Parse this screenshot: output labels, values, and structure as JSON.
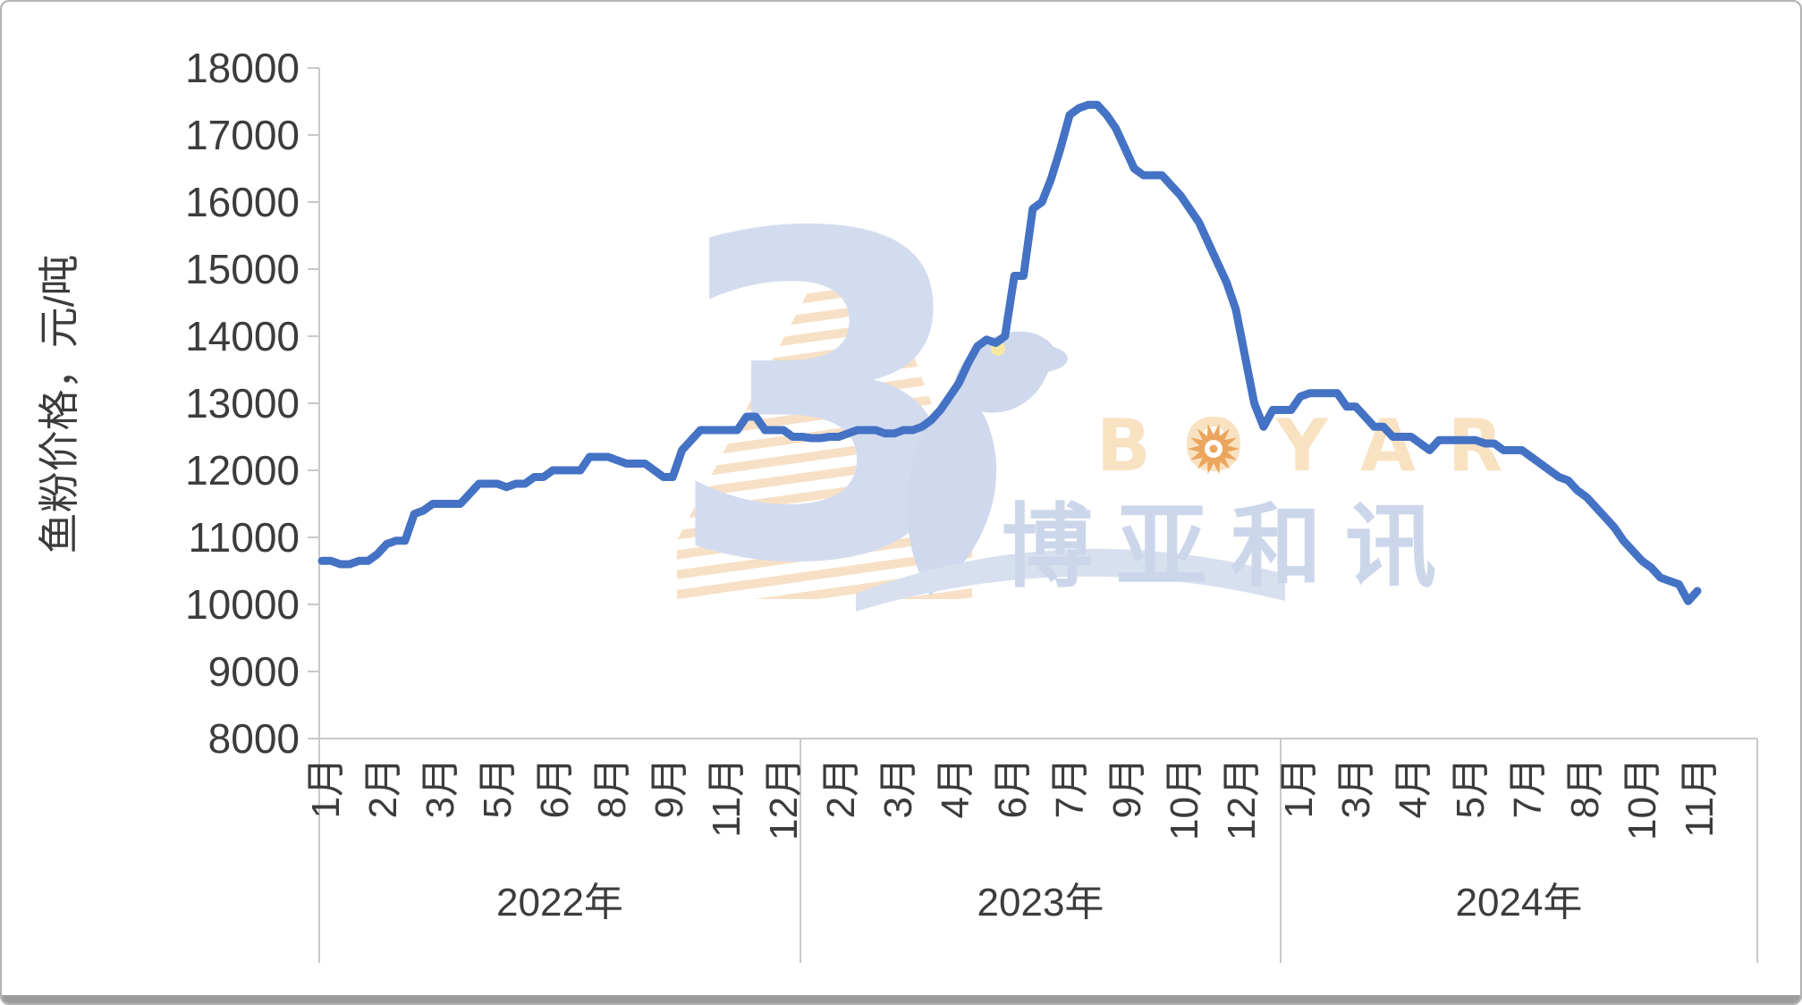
{
  "y_axis": {
    "title": "鱼粉价格，元/吨",
    "ticks": [
      18000,
      17000,
      16000,
      15000,
      14000,
      13000,
      12000,
      11000,
      10000,
      9000,
      8000
    ]
  },
  "x_axis": {
    "month_labels": [
      "1月",
      "2月",
      "3月",
      "5月",
      "6月",
      "8月",
      "9月",
      "11月",
      "12月",
      "2月",
      "3月",
      "4月",
      "6月",
      "7月",
      "9月",
      "10月",
      "12月",
      "1月",
      "3月",
      "4月",
      "5月",
      "7月",
      "8月",
      "10月",
      "11月"
    ],
    "year_groups": [
      {
        "label": "2022年"
      },
      {
        "label": "2023年"
      },
      {
        "label": "2024年"
      }
    ]
  },
  "watermark": {
    "brand_latin_letters": [
      "B",
      "O",
      "Y",
      "A",
      "R"
    ],
    "brand_cn": "博亚和讯",
    "color_orange_light": "#f8e2c2",
    "color_orange_sun": "#eca55c",
    "color_blue_light": "#ccd6eb"
  },
  "colors": {
    "line": "#4472c4",
    "axis": "#c9c9c9",
    "label": "#3c3c3c"
  },
  "chart_data": {
    "type": "line",
    "series_name": "鱼粉价格",
    "unit": "元/吨",
    "x_description": "weekly prices, Jan 2022 – Nov 2024",
    "ylim": [
      8000,
      18000
    ],
    "y_tick_step": 1000,
    "grid": false,
    "legend": false,
    "years": [
      "2022年",
      "2023年",
      "2024年"
    ],
    "values": [
      10650,
      10650,
      10600,
      10600,
      10650,
      10650,
      10750,
      10900,
      10950,
      10950,
      11350,
      11400,
      11500,
      11500,
      11500,
      11500,
      11650,
      11800,
      11800,
      11800,
      11750,
      11800,
      11800,
      11900,
      11900,
      12000,
      12000,
      12000,
      12000,
      12200,
      12200,
      12200,
      12150,
      12100,
      12100,
      12100,
      12000,
      11900,
      11900,
      12300,
      12450,
      12600,
      12600,
      12600,
      12600,
      12600,
      12800,
      12800,
      12600,
      12600,
      12600,
      12500,
      12500,
      12480,
      12480,
      12500,
      12500,
      12550,
      12600,
      12600,
      12600,
      12550,
      12550,
      12600,
      12600,
      12650,
      12750,
      12900,
      13100,
      13300,
      13600,
      13850,
      13950,
      13900,
      14000,
      14900,
      14900,
      15900,
      16000,
      16350,
      16800,
      17300,
      17400,
      17450,
      17450,
      17300,
      17100,
      16800,
      16500,
      16400,
      16400,
      16400,
      16250,
      16100,
      15900,
      15700,
      15400,
      15100,
      14800,
      14400,
      13700,
      13000,
      12650,
      12900,
      12900,
      12900,
      13100,
      13150,
      13150,
      13150,
      13150,
      12950,
      12950,
      12800,
      12650,
      12650,
      12500,
      12500,
      12500,
      12400,
      12300,
      12450,
      12450,
      12450,
      12450,
      12450,
      12400,
      12400,
      12300,
      12300,
      12300,
      12200,
      12100,
      12000,
      11900,
      11850,
      11700,
      11600,
      11450,
      11300,
      11150,
      10950,
      10800,
      10650,
      10550,
      10400,
      10350,
      10300,
      10050,
      10200
    ]
  }
}
